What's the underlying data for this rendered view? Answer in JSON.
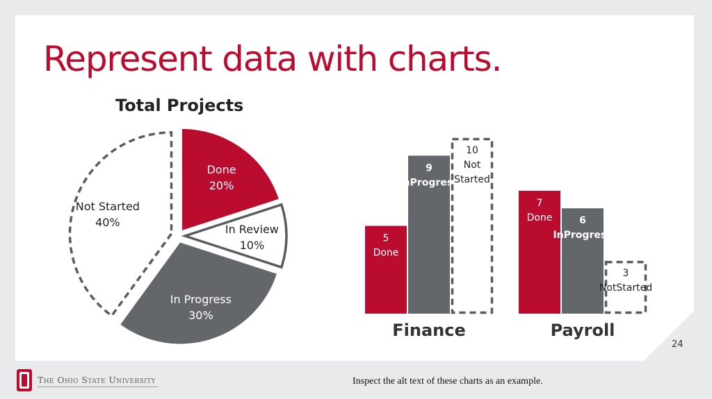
{
  "slide": {
    "title": "Represent data with charts.",
    "page_number": "24",
    "footer_note": "Inspect the alt text of these charts as an example.",
    "university_wordmark": "The Ohio State University"
  },
  "colors": {
    "brand_red": "#ba0c2f",
    "gray": "#63666a",
    "outline_gray": "#595c5f"
  },
  "chart_data": [
    {
      "type": "pie",
      "title": "Total Projects",
      "slices": [
        {
          "label": "Done",
          "value": 20,
          "display": "20%",
          "style": "solid-red"
        },
        {
          "label": "In Review",
          "value": 10,
          "display": "10%",
          "style": "outline"
        },
        {
          "label": "In Progress",
          "value": 30,
          "display": "30%",
          "style": "solid-gray"
        },
        {
          "label": "Not Started",
          "value": 40,
          "display": "40%",
          "style": "dashed"
        }
      ]
    },
    {
      "type": "bar",
      "categories": [
        "Finance",
        "Payroll"
      ],
      "series": [
        {
          "values": [
            5,
            7
          ],
          "labels": [
            "Done",
            "Done"
          ],
          "style": "solid-red"
        },
        {
          "values": [
            9,
            6
          ],
          "labels": [
            "InProgress",
            "InProgress"
          ],
          "style": "solid-gray"
        },
        {
          "values": [
            10,
            3
          ],
          "labels": [
            "Not Started",
            "NotStarted"
          ],
          "style": "dashed"
        }
      ],
      "ylim": [
        0,
        10
      ]
    }
  ]
}
